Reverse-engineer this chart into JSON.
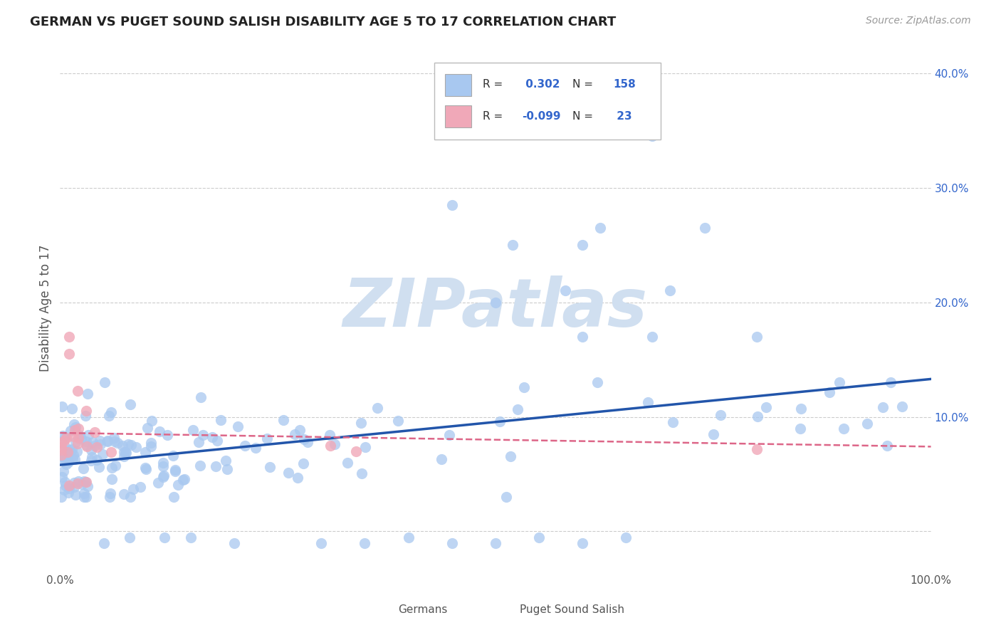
{
  "title": "GERMAN VS PUGET SOUND SALISH DISABILITY AGE 5 TO 17 CORRELATION CHART",
  "source_text": "Source: ZipAtlas.com",
  "ylabel": "Disability Age 5 to 17",
  "xlim": [
    0.0,
    1.0
  ],
  "ylim": [
    -0.035,
    0.425
  ],
  "german_R": 0.302,
  "german_N": 158,
  "salish_R": -0.099,
  "salish_N": 23,
  "german_color": "#a8c8f0",
  "salish_color": "#f0a8b8",
  "german_line_color": "#2255aa",
  "salish_line_color": "#dd6688",
  "watermark_color": "#d0dff0",
  "background_color": "#ffffff",
  "grid_color": "#cccccc",
  "legend_R_color": "#3366cc",
  "title_color": "#222222",
  "ylabel_color": "#555555",
  "tick_color": "#3366cc",
  "german_line_intercept": 0.058,
  "german_line_slope": 0.075,
  "salish_line_intercept": 0.086,
  "salish_line_slope": -0.012
}
